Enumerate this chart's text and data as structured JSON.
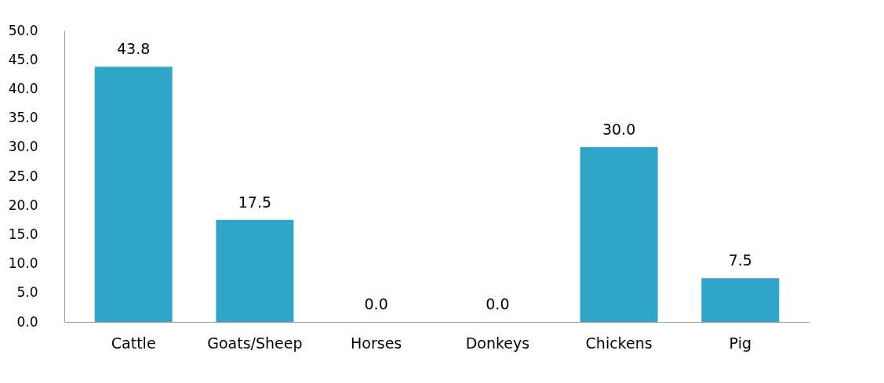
{
  "chart_data": {
    "type": "bar",
    "categories": [
      "Cattle",
      "Goats/Sheep",
      "Horses",
      "Donkeys",
      "Chickens",
      "Pig"
    ],
    "values": [
      43.8,
      17.5,
      0.0,
      0.0,
      30.0,
      7.5
    ],
    "value_labels": [
      "43.8",
      "17.5",
      "0.0",
      "0.0",
      "30.0",
      "7.5"
    ],
    "color": "#31a5c8",
    "ylim": [
      0,
      50
    ],
    "yticks": [
      {
        "value": 0,
        "label": "0.0"
      },
      {
        "value": 5,
        "label": "5.0"
      },
      {
        "value": 10,
        "label": "10.0"
      },
      {
        "value": 15,
        "label": "15.0"
      },
      {
        "value": 20,
        "label": "20.0"
      },
      {
        "value": 25,
        "label": "25.0"
      },
      {
        "value": 30,
        "label": "30.0"
      },
      {
        "value": 35,
        "label": "35.0"
      },
      {
        "value": 40,
        "label": "40.0"
      },
      {
        "value": 45,
        "label": "45.0"
      },
      {
        "value": 50,
        "label": "50.0"
      }
    ],
    "grid": false
  }
}
